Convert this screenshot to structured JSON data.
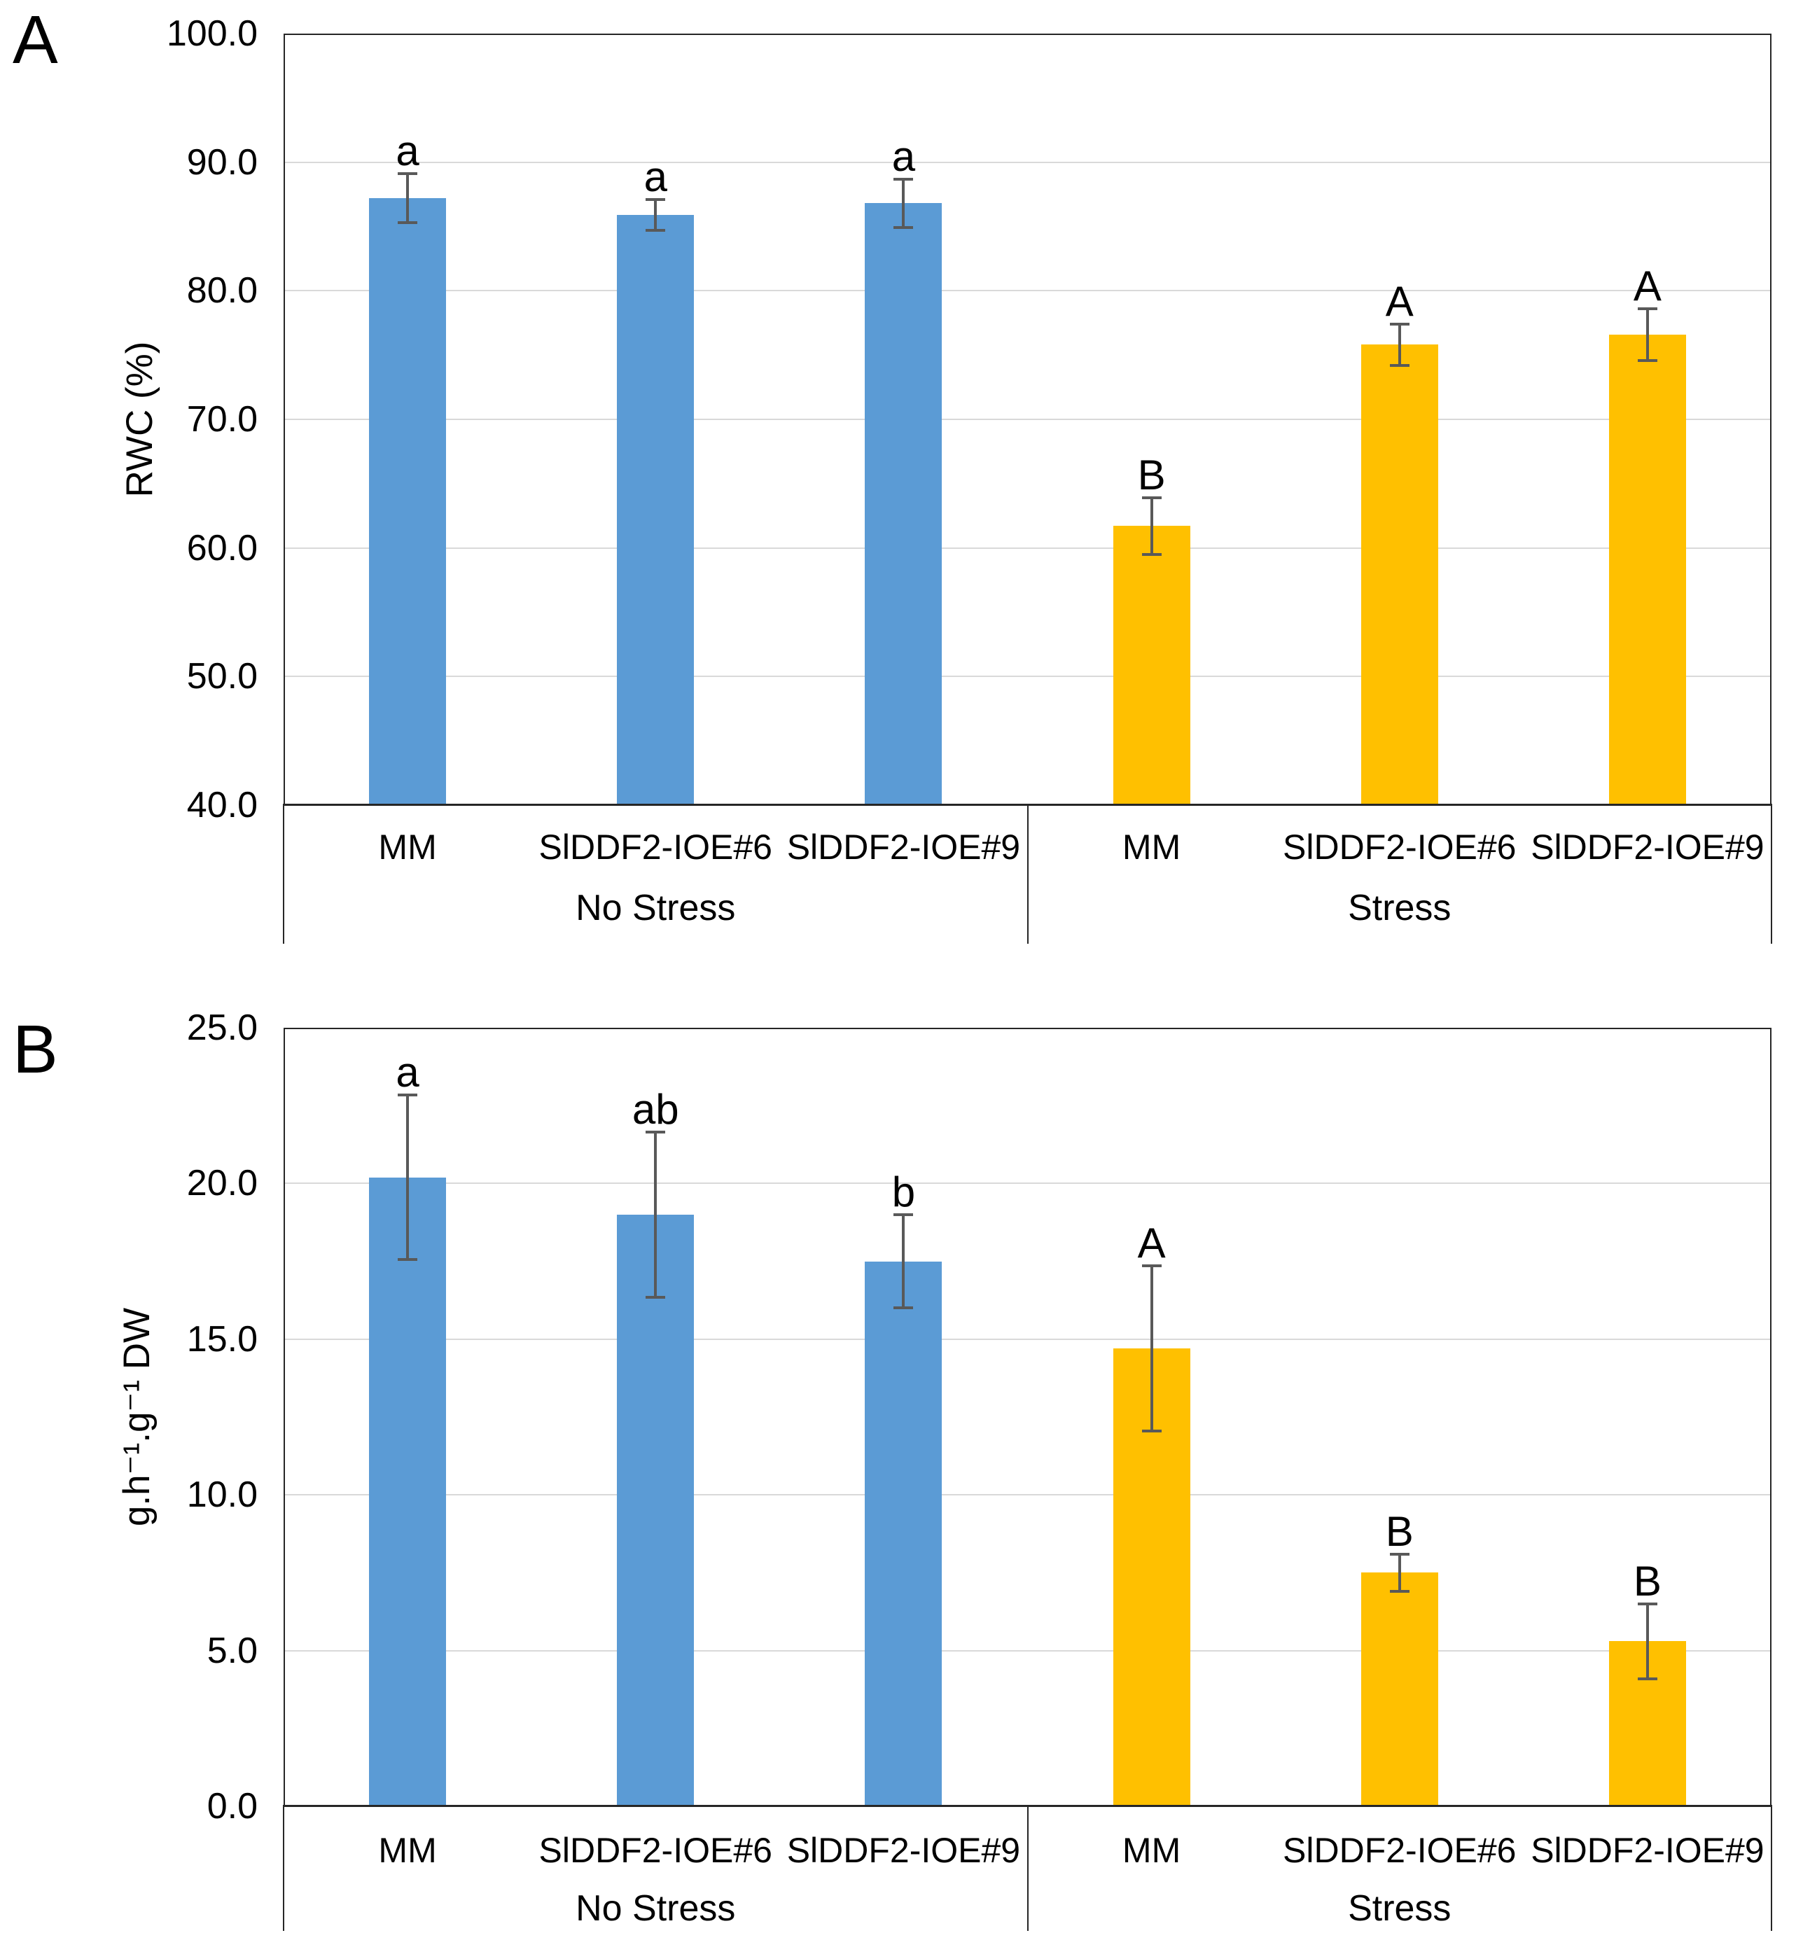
{
  "figure": {
    "description": "Two-panel bar chart comparing MM and SlDDF2 overexpression tomato lines under No Stress and Stress conditions",
    "panel_labels": [
      "A",
      "B"
    ],
    "colors": {
      "no_stress_bar": "#5B9BD5",
      "stress_bar": "#FFC000",
      "error_bar": "#595959",
      "gridline": "#D9D9D9",
      "axis": "#262626",
      "text": "#000000",
      "background": "#FFFFFF"
    }
  },
  "chart_data": [
    {
      "type": "bar",
      "panel": "A",
      "title": "",
      "xlabel": "",
      "ylabel": "RWC (%)",
      "ylim": [
        40,
        100
      ],
      "ytick_step": 10,
      "yticks": [
        "100.0",
        "90.0",
        "80.0",
        "70.0",
        "60.0",
        "50.0",
        "40.0"
      ],
      "grid": true,
      "legend_position": "none",
      "group_labels": [
        "No Stress",
        "Stress"
      ],
      "categories": [
        "MM",
        "SlDDF2-IOE#6",
        "SlDDF2-IOE#9",
        "MM",
        "SlDDF2-IOE#6",
        "SlDDF2-IOE#9"
      ],
      "values": [
        87.2,
        85.9,
        86.8,
        61.7,
        75.8,
        76.6
      ],
      "errors": [
        1.9,
        1.2,
        1.9,
        2.2,
        1.6,
        2.0
      ],
      "sig_letters": [
        "a",
        "a",
        "a",
        "B",
        "A",
        "A"
      ],
      "bar_colors": [
        "#5B9BD5",
        "#5B9BD5",
        "#5B9BD5",
        "#FFC000",
        "#FFC000",
        "#FFC000"
      ]
    },
    {
      "type": "bar",
      "panel": "B",
      "title": "",
      "xlabel": "",
      "ylabel": "g.h⁻¹.g⁻¹ DW",
      "ylim": [
        0,
        25
      ],
      "ytick_step": 5,
      "yticks": [
        "25.0",
        "20.0",
        "15.0",
        "10.0",
        "5.0",
        "0.0"
      ],
      "grid": true,
      "legend_position": "none",
      "group_labels": [
        "No Stress",
        "Stress"
      ],
      "categories": [
        "MM",
        "SlDDF2-IOE#6",
        "SlDDF2-IOE#9",
        "MM",
        "SlDDF2-IOE#6",
        "SlDDF2-IOE#9"
      ],
      "values": [
        20.2,
        19.0,
        17.5,
        14.7,
        7.5,
        5.3
      ],
      "errors": [
        2.65,
        2.65,
        1.5,
        2.65,
        0.6,
        1.2
      ],
      "sig_letters": [
        "a",
        "ab",
        "b",
        "A",
        "B",
        "B"
      ],
      "bar_colors": [
        "#5B9BD5",
        "#5B9BD5",
        "#5B9BD5",
        "#FFC000",
        "#FFC000",
        "#FFC000"
      ]
    }
  ]
}
